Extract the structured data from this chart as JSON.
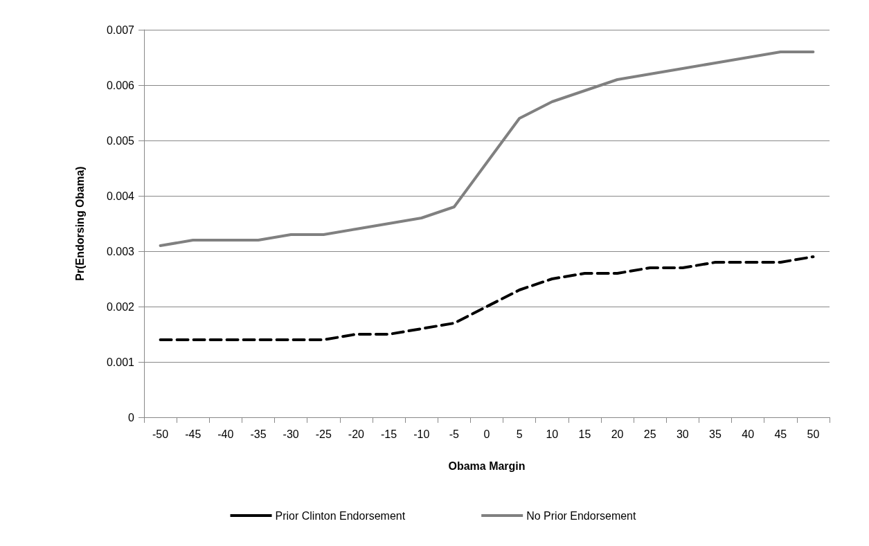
{
  "chart_data": {
    "type": "line",
    "xlabel": "Obama Margin",
    "ylabel": "Pr(Endorsing Obama)",
    "categories": [
      "-50",
      "-45",
      "-40",
      "-35",
      "-30",
      "-25",
      "-20",
      "-15",
      "-10",
      "-5",
      "0",
      "5",
      "10",
      "15",
      "20",
      "25",
      "30",
      "35",
      "40",
      "45",
      "50"
    ],
    "series": [
      {
        "name": "Prior Clinton Endorsement",
        "color": "#000000",
        "line_style": "dashed",
        "values": [
          0.0014,
          0.0014,
          0.0014,
          0.0014,
          0.0014,
          0.0014,
          0.0015,
          0.0015,
          0.0016,
          0.0017,
          0.002,
          0.0023,
          0.0025,
          0.0026,
          0.0026,
          0.0027,
          0.0027,
          0.0028,
          0.0028,
          0.0028,
          0.0029
        ]
      },
      {
        "name": "No Prior Endorsement",
        "color": "#808080",
        "line_style": "solid",
        "values": [
          0.0031,
          0.0032,
          0.0032,
          0.0032,
          0.0033,
          0.0033,
          0.0034,
          0.0035,
          0.0036,
          0.0038,
          0.0046,
          0.0054,
          0.0057,
          0.0059,
          0.0061,
          0.0062,
          0.0063,
          0.0064,
          0.0065,
          0.0066,
          0.0066
        ]
      }
    ],
    "ylim": [
      0,
      0.007
    ],
    "yticks": [
      0,
      0.001,
      0.002,
      0.003,
      0.004,
      0.005,
      0.006,
      0.007
    ],
    "grid": "y",
    "legend": "bottom",
    "marker": "none"
  }
}
